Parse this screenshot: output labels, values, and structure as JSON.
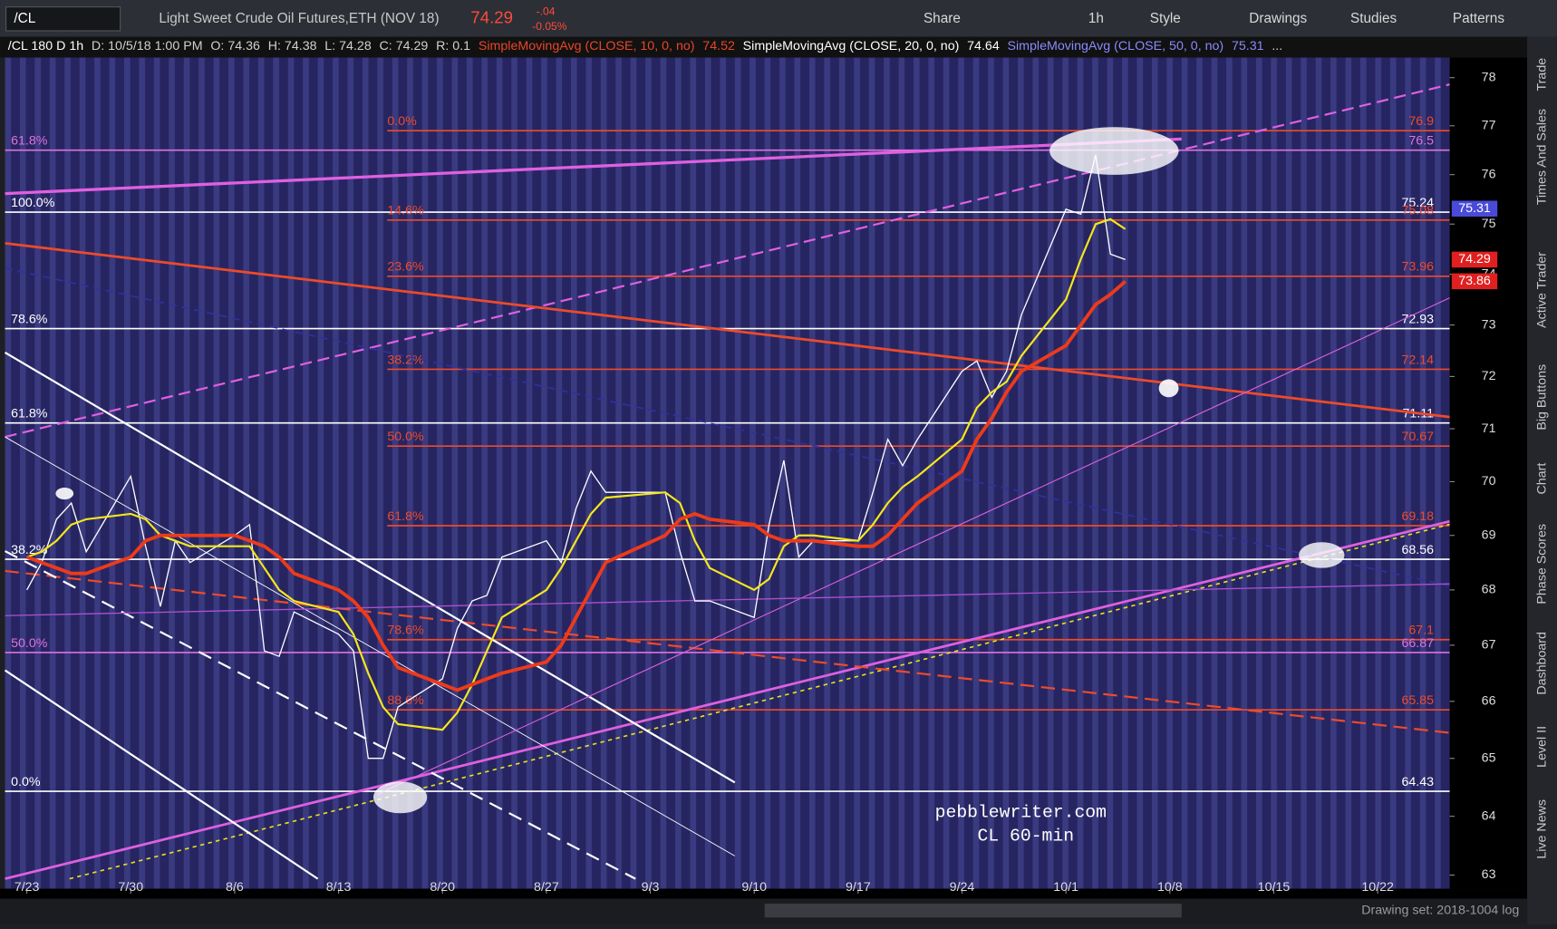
{
  "toolbar": {
    "symbol": "/CL",
    "description": "Light Sweet Crude Oil Futures,ETH (NOV 18)",
    "last": "74.29",
    "change": "-.04",
    "change_pct": "-0.05%",
    "buttons": [
      "Share",
      "1h",
      "Style",
      "Drawings",
      "Studies",
      "Patterns"
    ]
  },
  "header": [
    {
      "text": "/CL 180 D 1h",
      "color": "#ffffff"
    },
    {
      "text": "D: 10/5/18 1:00 PM",
      "color": "#d0d0d0"
    },
    {
      "text": "O: 74.36",
      "color": "#d0d0d0"
    },
    {
      "text": "H: 74.38",
      "color": "#d0d0d0"
    },
    {
      "text": "L: 74.28",
      "color": "#d0d0d0"
    },
    {
      "text": "C: 74.29",
      "color": "#d0d0d0"
    },
    {
      "text": "R: 0.1",
      "color": "#d0d0d0"
    },
    {
      "text": "SimpleMovingAvg (CLOSE, 10, 0, no)",
      "color": "#e8462a"
    },
    {
      "text": "74.52",
      "color": "#e8462a"
    },
    {
      "text": "SimpleMovingAvg (CLOSE, 20, 0, no)",
      "color": "#ffffff"
    },
    {
      "text": "74.64",
      "color": "#ffffff"
    },
    {
      "text": "SimpleMovingAvg (CLOSE, 50, 0, no)",
      "color": "#8a8aff"
    },
    {
      "text": "75.31",
      "color": "#8a8aff"
    },
    {
      "text": "...",
      "color": "#d0d0d0"
    }
  ],
  "side_tabs": [
    "Trade",
    "Times And Sales",
    "Active Trader",
    "Big Buttons",
    "Chart",
    "Phase Scores",
    "Dashboard",
    "Level II",
    "Live News"
  ],
  "footer": "Drawing set: 2018-1004 log",
  "chart_data": {
    "type": "line",
    "log_scale": true,
    "watermark": [
      "pebblewriter.com",
      "CL 60-min"
    ],
    "ylim": [
      62.77,
      78.42
    ],
    "yticks": [
      63,
      64,
      65,
      66,
      67,
      68,
      69,
      70,
      71,
      72,
      73,
      74,
      75,
      76,
      77,
      78
    ],
    "xticks": [
      "7/23",
      "7/30",
      "8/6",
      "8/13",
      "8/20",
      "8/27",
      "9/3",
      "9/10",
      "9/17",
      "9/24",
      "10/1",
      "10/8",
      "10/15",
      "10/22"
    ],
    "x": [
      "7/23",
      "7/24",
      "7/25",
      "7/26",
      "7/27",
      "7/30",
      "7/31",
      "8/1",
      "8/2",
      "8/3",
      "8/6",
      "8/7",
      "8/8",
      "8/9",
      "8/10",
      "8/13",
      "8/14",
      "8/15",
      "8/16",
      "8/17",
      "8/20",
      "8/21",
      "8/22",
      "8/23",
      "8/24",
      "8/27",
      "8/28",
      "8/29",
      "8/30",
      "8/31",
      "9/4",
      "9/5",
      "9/6",
      "9/7",
      "9/10",
      "9/11",
      "9/12",
      "9/13",
      "9/14",
      "9/17",
      "9/18",
      "9/19",
      "9/20",
      "9/21",
      "9/24",
      "9/25",
      "9/26",
      "9/27",
      "9/28",
      "10/1",
      "10/2",
      "10/3",
      "10/4",
      "10/5"
    ],
    "series": [
      {
        "color": "#ffffff",
        "width": 1.2,
        "values": [
          68.0,
          68.5,
          69.3,
          69.6,
          68.7,
          70.1,
          68.8,
          67.7,
          68.9,
          68.5,
          69.0,
          69.2,
          66.9,
          66.8,
          67.6,
          67.2,
          66.9,
          65.0,
          65.0,
          65.9,
          66.4,
          67.3,
          67.8,
          67.9,
          68.6,
          68.9,
          68.5,
          69.5,
          70.2,
          69.8,
          69.8,
          68.7,
          67.8,
          67.8,
          67.5,
          69.2,
          70.4,
          68.6,
          68.9,
          68.9,
          69.8,
          70.8,
          70.3,
          70.8,
          72.1,
          72.3,
          71.6,
          72.1,
          73.2,
          75.3,
          75.2,
          76.4,
          74.4,
          74.29
        ]
      },
      {
        "color": "#f5e61c",
        "width": 2,
        "values": [
          68.6,
          68.7,
          68.9,
          69.2,
          69.3,
          69.4,
          69.3,
          69.0,
          68.9,
          68.8,
          68.8,
          68.8,
          68.4,
          68.0,
          67.8,
          67.6,
          67.2,
          66.5,
          65.9,
          65.6,
          65.5,
          65.8,
          66.3,
          66.9,
          67.5,
          68.0,
          68.4,
          68.9,
          69.4,
          69.7,
          69.8,
          69.6,
          68.9,
          68.4,
          68.0,
          68.2,
          68.8,
          69.0,
          69.0,
          68.9,
          69.2,
          69.6,
          69.9,
          70.1,
          70.8,
          71.4,
          71.7,
          71.9,
          72.4,
          73.5,
          74.3,
          75.0,
          75.1,
          74.9
        ]
      },
      {
        "color": "#ee3a1a",
        "width": 3.5,
        "values": [
          68.6,
          68.5,
          68.4,
          68.3,
          68.3,
          68.6,
          68.9,
          69.0,
          69.0,
          69.0,
          69.0,
          68.9,
          68.8,
          68.6,
          68.3,
          68.0,
          67.8,
          67.5,
          67.0,
          66.6,
          66.3,
          66.2,
          66.3,
          66.4,
          66.5,
          66.7,
          67.0,
          67.5,
          68.0,
          68.5,
          69.0,
          69.3,
          69.4,
          69.3,
          69.2,
          69.0,
          68.9,
          68.9,
          68.9,
          68.8,
          68.8,
          69.0,
          69.3,
          69.6,
          70.2,
          70.8,
          71.2,
          71.7,
          72.1,
          72.6,
          73.0,
          73.4,
          73.6,
          73.86
        ]
      }
    ],
    "levels": [
      {
        "price": 76.9,
        "color": "#ee4a2a",
        "label": "0.0%",
        "place": "mid"
      },
      {
        "price": 76.5,
        "color": "#e070e0",
        "label": "61.8%",
        "place": "left"
      },
      {
        "price": 75.24,
        "color": "#ffffff",
        "label": "100.0%",
        "place": "left"
      },
      {
        "price": 75.08,
        "color": "#ee4a2a",
        "label": "14.6%",
        "place": "mid"
      },
      {
        "price": 73.96,
        "color": "#ee4a2a",
        "label": "23.6%",
        "place": "mid"
      },
      {
        "price": 72.93,
        "color": "#ffffff",
        "label": "78.6%",
        "place": "left"
      },
      {
        "price": 72.14,
        "color": "#ee4a2a",
        "label": "38.2%",
        "place": "mid"
      },
      {
        "price": 71.11,
        "color": "#ffffff",
        "label": "61.8%",
        "place": "left"
      },
      {
        "price": 70.67,
        "color": "#ee4a2a",
        "label": "50.0%",
        "place": "mid"
      },
      {
        "price": 69.18,
        "color": "#ee4a2a",
        "label": "61.8%",
        "place": "mid"
      },
      {
        "price": 68.56,
        "color": "#ffffff",
        "label": "38.2%",
        "place": "left"
      },
      {
        "price": 67.1,
        "color": "#ee4a2a",
        "label": "78.6%",
        "place": "mid"
      },
      {
        "price": 66.87,
        "color": "#e070e0",
        "label": "50.0%",
        "place": "left"
      },
      {
        "price": 65.85,
        "color": "#ee4a2a",
        "label": "88.6%",
        "place": "mid"
      },
      {
        "price": 64.43,
        "color": "#ffffff",
        "label": "0.0%",
        "place": "left"
      }
    ],
    "price_badges": [
      {
        "value": 75.31,
        "color": "#4a4ad8"
      },
      {
        "value": 74.29,
        "color": "#e02020"
      },
      {
        "value": 73.86,
        "color": "#e02020"
      }
    ]
  }
}
